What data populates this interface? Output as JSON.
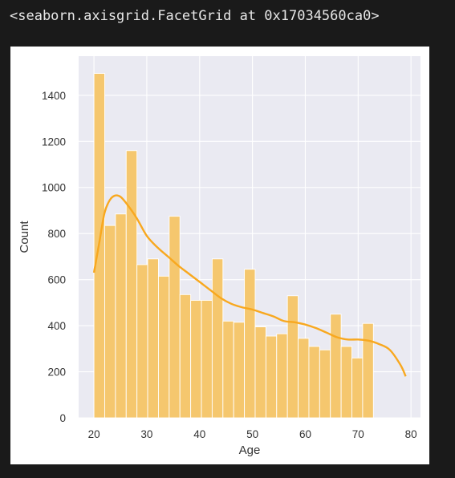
{
  "output": {
    "repr_text": "<seaborn.axisgrid.FacetGrid at 0x17034560ca0>"
  },
  "chart_data": {
    "type": "bar",
    "style": "seaborn histogram with kde",
    "xlabel": "Age",
    "ylabel": "Count",
    "xlim": [
      17.1,
      81.8
    ],
    "ylim": [
      0,
      1570
    ],
    "xticks": [
      20,
      30,
      40,
      50,
      60,
      70,
      80
    ],
    "yticks": [
      0,
      200,
      400,
      600,
      800,
      1000,
      1200,
      1400
    ],
    "grid": true,
    "bins": {
      "start": 20,
      "width": 2.034,
      "values": [
        1495,
        835,
        885,
        1160,
        665,
        690,
        615,
        875,
        535,
        510,
        510,
        690,
        420,
        415,
        645,
        395,
        355,
        365,
        530,
        345,
        310,
        295,
        450,
        310,
        260,
        410
      ]
    },
    "kde": {
      "x": [
        20,
        21,
        22,
        23,
        24,
        25,
        26,
        28,
        30,
        32,
        34,
        36,
        38,
        40,
        42,
        44,
        46,
        48,
        50,
        52,
        54,
        56,
        58,
        60,
        62,
        64,
        66,
        68,
        70,
        72,
        74,
        76,
        78,
        79
      ],
      "y": [
        630,
        760,
        890,
        945,
        965,
        960,
        935,
        870,
        790,
        740,
        700,
        660,
        625,
        590,
        555,
        520,
        495,
        480,
        470,
        455,
        440,
        420,
        415,
        405,
        390,
        370,
        350,
        340,
        340,
        335,
        320,
        295,
        230,
        180
      ]
    },
    "colors": {
      "bar_fill": "#f5c76e",
      "bar_edge": "#ffffff",
      "kde_line": "#f8a81f",
      "axes_bg": "#eaeaf2",
      "grid": "#ffffff"
    }
  }
}
